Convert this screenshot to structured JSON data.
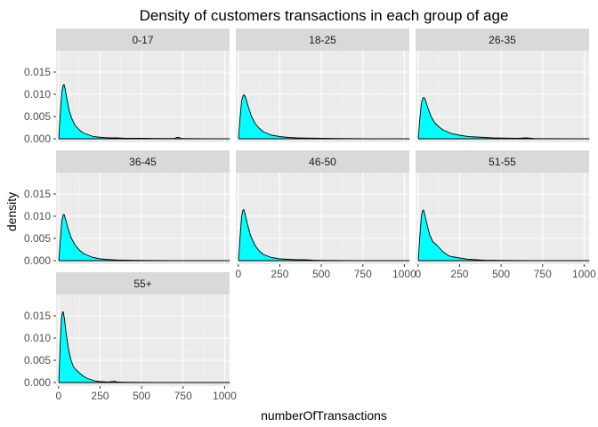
{
  "chart_data": {
    "type": "area",
    "title": "Density of customers transactions in each group of age",
    "xlabel": "numberOfTransactions",
    "ylabel": "density",
    "xlim": [
      -15,
      1030
    ],
    "ylim": [
      -0.0008,
      0.0198
    ],
    "x_ticks": [
      0,
      250,
      500,
      750,
      1000
    ],
    "y_ticks": [
      0.0,
      0.005,
      0.01,
      0.015
    ],
    "y_tick_labels": [
      "0.000",
      "0.005",
      "0.010",
      "0.015"
    ],
    "fill_color": "#00ffff",
    "panel_background": "#ebebeb",
    "strip_background": "#d9d9d9",
    "grid": true,
    "layout": "facet_wrap 3 columns",
    "panels": [
      {
        "label": "0-17",
        "x": [
          2,
          10,
          20,
          28,
          33,
          40,
          50,
          65,
          80,
          100,
          125,
          150,
          180,
          210,
          260,
          300,
          350,
          400,
          450,
          500,
          600,
          700,
          710,
          725,
          740,
          800,
          900,
          1000,
          1030
        ],
        "y": [
          0.0005,
          0.0055,
          0.0105,
          0.0121,
          0.0122,
          0.0112,
          0.009,
          0.0062,
          0.0045,
          0.003,
          0.002,
          0.0013,
          0.0009,
          0.0005,
          0.0003,
          0.0002,
          0.0002,
          0.0001,
          0.0001,
          0.0001,
          5e-05,
          5e-05,
          0.0003,
          0.0003,
          5e-05,
          3e-05,
          2e-05,
          1e-05,
          0.0
        ]
      },
      {
        "label": "18-25",
        "x": [
          2,
          10,
          20,
          30,
          36,
          45,
          60,
          80,
          100,
          125,
          150,
          200,
          250,
          300,
          350,
          400,
          500,
          600,
          700,
          800,
          900,
          1000,
          1030
        ],
        "y": [
          0.0004,
          0.0045,
          0.0085,
          0.0098,
          0.0099,
          0.0092,
          0.0072,
          0.005,
          0.0035,
          0.0024,
          0.0016,
          0.0008,
          0.0005,
          0.0003,
          0.0002,
          0.00015,
          0.0001,
          5e-05,
          3e-05,
          2e-05,
          1e-05,
          1e-05,
          0.0
        ]
      },
      {
        "label": "26-35",
        "x": [
          2,
          10,
          20,
          30,
          36,
          45,
          60,
          80,
          100,
          125,
          150,
          200,
          250,
          300,
          350,
          400,
          450,
          500,
          600,
          650,
          700,
          800,
          900,
          1000,
          1030
        ],
        "y": [
          0.0004,
          0.0042,
          0.008,
          0.0092,
          0.0093,
          0.0086,
          0.0068,
          0.0049,
          0.0036,
          0.0027,
          0.002,
          0.0012,
          0.0008,
          0.0005,
          0.0004,
          0.0003,
          0.0002,
          0.00015,
          0.0001,
          0.0002,
          5e-05,
          3e-05,
          2e-05,
          1e-05,
          0.0
        ]
      },
      {
        "label": "36-45",
        "x": [
          2,
          10,
          20,
          28,
          33,
          40,
          55,
          75,
          100,
          125,
          150,
          200,
          250,
          300,
          350,
          400,
          500,
          600,
          700,
          800,
          900,
          1000,
          1030
        ],
        "y": [
          0.0004,
          0.0045,
          0.009,
          0.0103,
          0.0104,
          0.0096,
          0.0075,
          0.0052,
          0.0035,
          0.0024,
          0.0016,
          0.0008,
          0.0004,
          0.00025,
          0.00015,
          0.0001,
          5e-05,
          3e-05,
          2e-05,
          1e-05,
          1e-05,
          0.0,
          0.0
        ]
      },
      {
        "label": "46-50",
        "x": [
          2,
          10,
          20,
          28,
          33,
          40,
          55,
          75,
          100,
          125,
          150,
          200,
          250,
          300,
          350,
          400,
          450,
          500,
          600,
          700,
          800,
          900,
          1000,
          1030
        ],
        "y": [
          0.0005,
          0.005,
          0.01,
          0.0114,
          0.0115,
          0.0106,
          0.0082,
          0.0055,
          0.0035,
          0.0022,
          0.0014,
          0.0007,
          0.0004,
          0.0003,
          0.0002,
          0.0002,
          0.0001,
          5e-05,
          3e-05,
          2e-05,
          1e-05,
          1e-05,
          0.0,
          0.0
        ]
      },
      {
        "label": "51-55",
        "x": [
          2,
          10,
          20,
          28,
          33,
          40,
          55,
          70,
          90,
          110,
          130,
          150,
          180,
          200,
          220,
          250,
          300,
          350,
          400,
          500,
          600,
          700,
          800,
          1000,
          1030
        ],
        "y": [
          0.0005,
          0.0052,
          0.01,
          0.0113,
          0.0114,
          0.0104,
          0.008,
          0.0058,
          0.0042,
          0.0036,
          0.0028,
          0.002,
          0.0012,
          0.0009,
          0.0008,
          0.0006,
          0.0003,
          0.0002,
          0.0001,
          5e-05,
          3e-05,
          2e-05,
          1e-05,
          0.0,
          0.0
        ]
      },
      {
        "label": "55+",
        "x": [
          2,
          10,
          18,
          24,
          28,
          35,
          45,
          60,
          75,
          90,
          110,
          130,
          150,
          175,
          200,
          225,
          250,
          300,
          340,
          350,
          400,
          500,
          600,
          700,
          800,
          1000,
          1030
        ],
        "y": [
          0.0008,
          0.0085,
          0.0145,
          0.0158,
          0.0159,
          0.0145,
          0.0112,
          0.0075,
          0.005,
          0.0035,
          0.0027,
          0.002,
          0.0014,
          0.0009,
          0.0006,
          0.0003,
          0.0002,
          0.0001,
          0.0003,
          0.0001,
          5e-05,
          3e-05,
          2e-05,
          1e-05,
          0.0,
          0.0,
          0.0
        ]
      }
    ]
  }
}
